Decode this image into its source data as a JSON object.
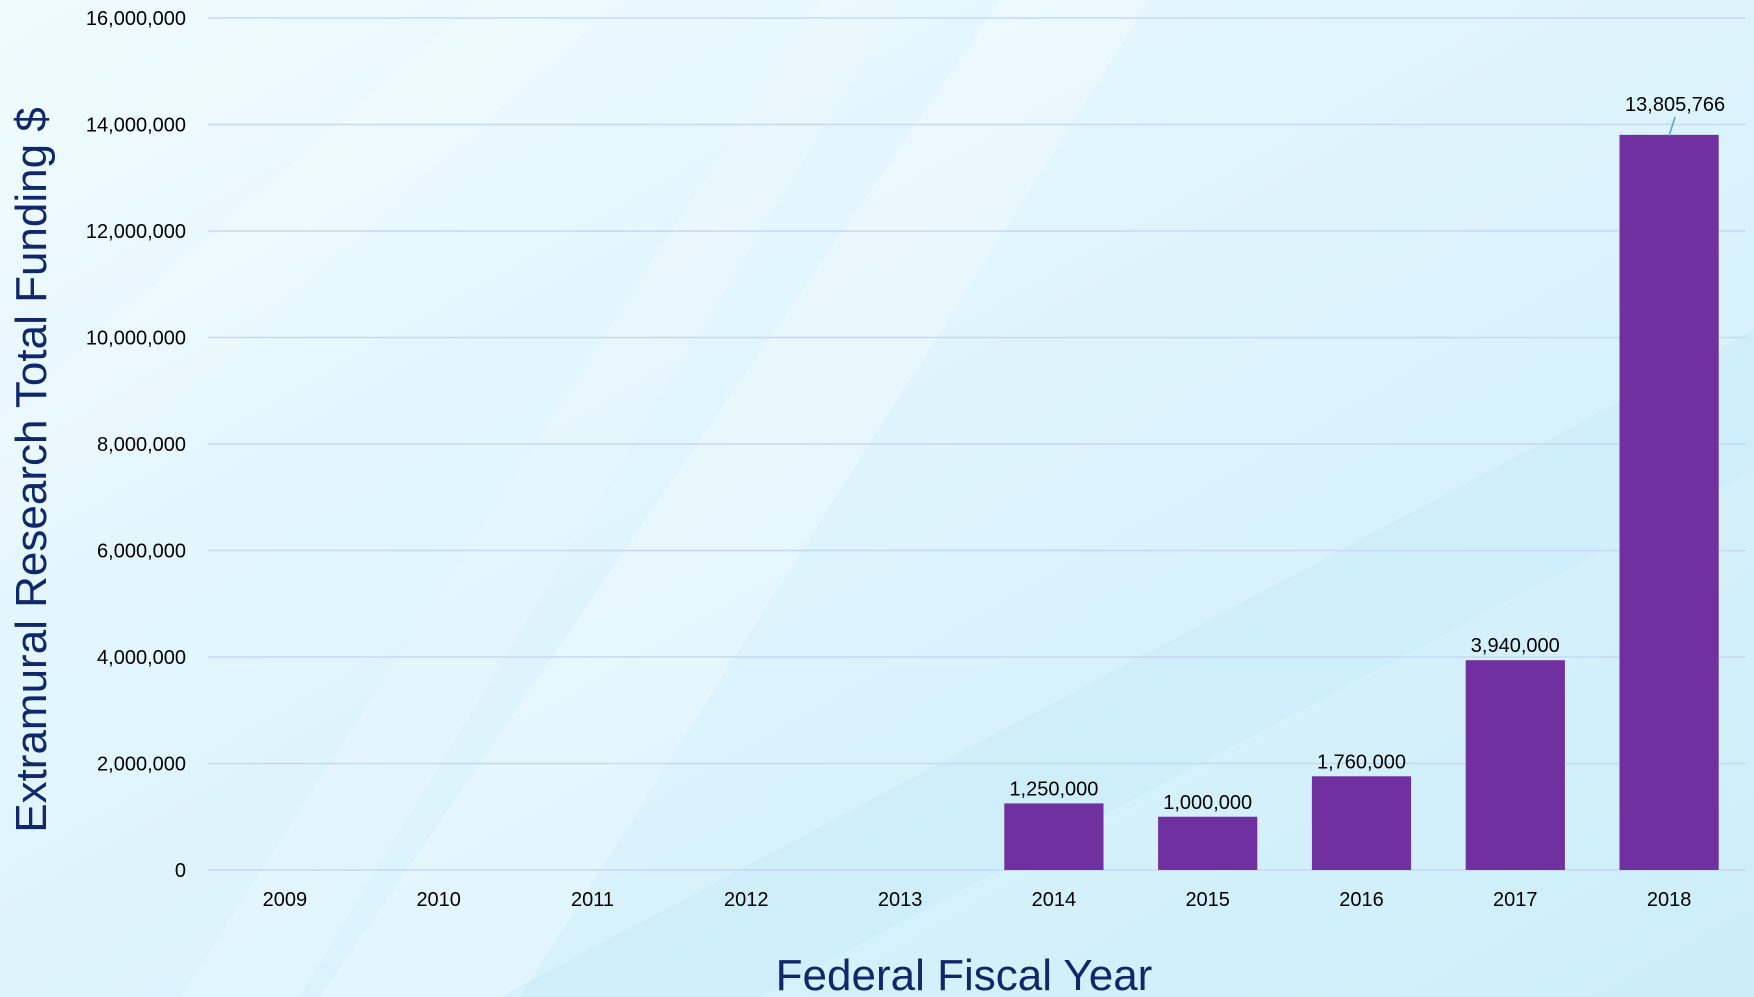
{
  "chart_data": {
    "type": "bar",
    "title": "",
    "xlabel": "Federal Fiscal Year",
    "ylabel": "Extramural Research Total Funding $",
    "categories": [
      "2009",
      "2010",
      "2011",
      "2012",
      "2013",
      "2014",
      "2015",
      "2016",
      "2017",
      "2018"
    ],
    "values": [
      0,
      0,
      0,
      0,
      0,
      1250000,
      1000000,
      1760000,
      3940000,
      13805766
    ],
    "data_labels": [
      "",
      "",
      "",
      "",
      "",
      "1,250,000",
      "1,000,000",
      "1,760,000",
      "3,940,000",
      "13,805,766"
    ],
    "ylim": [
      0,
      16000000
    ],
    "yticks": [
      0,
      2000000,
      4000000,
      6000000,
      8000000,
      10000000,
      12000000,
      14000000,
      16000000
    ],
    "ytick_labels": [
      "0",
      "2,000,000",
      "4,000,000",
      "6,000,000",
      "8,000,000",
      "10,000,000",
      "12,000,000",
      "14,000,000",
      "16,000,000"
    ],
    "grid": true,
    "legend": "none",
    "colors": {
      "bar": "#7030a0",
      "grid": "#c7d7f4",
      "axis_title": "#10276b",
      "background_light": "#eefaff",
      "background_mid": "#d6f1fb"
    }
  }
}
